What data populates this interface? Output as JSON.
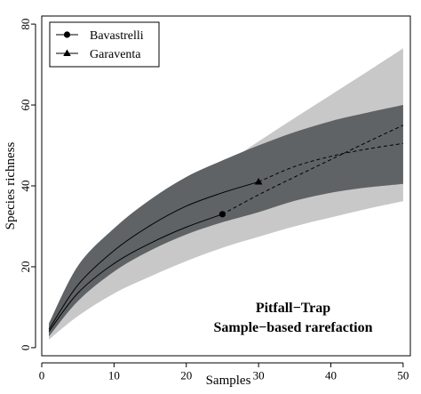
{
  "chart_data": {
    "type": "line",
    "xlabel": "Samples",
    "ylabel": "Species richness",
    "xlim": [
      0,
      51
    ],
    "ylim": [
      -2,
      82
    ],
    "x_ticks": [
      0,
      10,
      20,
      30,
      40,
      50
    ],
    "y_ticks": [
      0,
      20,
      40,
      60,
      80
    ],
    "legend_position": "top-left",
    "annotation": [
      "Pitfall−Trap",
      "Sample−based rarefaction"
    ],
    "series": [
      {
        "name": "Bavastrelli",
        "marker": "circle",
        "observed_samples": 25,
        "observed_richness": 33,
        "interpolated": {
          "x": [
            1,
            5,
            10,
            15,
            20,
            25
          ],
          "y": [
            4,
            13.5,
            20.8,
            25.8,
            29.8,
            33
          ]
        },
        "extrapolated": {
          "x": [
            25,
            30,
            35,
            40,
            45,
            50
          ],
          "y": [
            33,
            37.8,
            42.2,
            46.5,
            50.8,
            55
          ]
        },
        "ci_lower": [
          2,
          7.8,
          13.4,
          17.6,
          21.4,
          24.7,
          27.4,
          30,
          32.2,
          34.3,
          36.2
        ],
        "ci_upper": [
          5.5,
          19.2,
          27.5,
          34,
          39.5,
          45,
          51,
          56.8,
          62.5,
          68.2,
          74
        ],
        "band_color": "#c8c8c8"
      },
      {
        "name": "Garaventa",
        "marker": "triangle",
        "observed_samples": 30,
        "observed_richness": 41,
        "interpolated": {
          "x": [
            1,
            5,
            10,
            15,
            20,
            25,
            30
          ],
          "y": [
            4.5,
            15.5,
            24,
            30.2,
            35,
            38.3,
            41
          ]
        },
        "extrapolated": {
          "x": [
            30,
            35,
            40,
            45,
            50
          ],
          "y": [
            41,
            44.8,
            47.3,
            49.1,
            50.5
          ]
        },
        "ci_lower": [
          2.8,
          11.5,
          18.8,
          24,
          28,
          31,
          33.5,
          36.3,
          38.3,
          39.6,
          40.5
        ],
        "ci_upper": [
          6,
          20.2,
          29.5,
          36.6,
          42.2,
          46.3,
          50,
          53.3,
          56,
          58.1,
          60
        ],
        "band_color": "#5f6365"
      }
    ],
    "band_x": [
      1,
      5,
      10,
      15,
      20,
      25,
      30,
      35,
      40,
      45,
      50
    ]
  }
}
